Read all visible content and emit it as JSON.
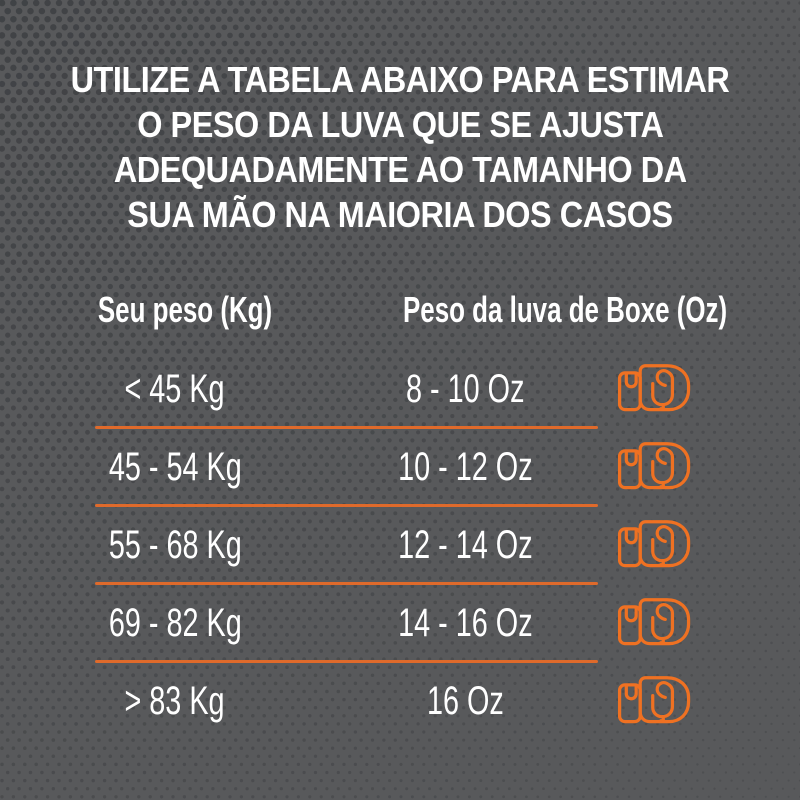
{
  "theme": {
    "background": "#58595b",
    "dot_color": "#3e4043",
    "accent_orange": "#ef7122",
    "divider_orange": "#df6a2b",
    "text_color": "#ffffff"
  },
  "icons": {
    "row_icon": "boxing-glove-icon"
  },
  "chart_data": {
    "type": "table",
    "title_lines": [
      "UTILIZE A TABELA ABAIXO PARA ESTIMAR",
      "O PESO DA LUVA QUE SE AJUSTA",
      "ADEQUADAMENTE AO TAMANHO DA",
      "SUA MÃO NA MAIORIA DOS CASOS"
    ],
    "title": "UTILIZE A TABELA ABAIXO PARA ESTIMAR O PESO DA LUVA QUE SE AJUSTA ADEQUADAMENTE AO TAMANHO DA SUA MÃO NA MAIORIA DOS CASOS",
    "columns": [
      "Seu peso (Kg)",
      "Peso da luva de Boxe (Oz)"
    ],
    "rows": [
      {
        "peso": "< 45 Kg",
        "luva": "8 - 10 Oz"
      },
      {
        "peso": "45 - 54 Kg",
        "luva": "10 - 12 Oz"
      },
      {
        "peso": "55 - 68 Kg",
        "luva": "12 - 14 Oz"
      },
      {
        "peso": "69 - 82 Kg",
        "luva": "14 - 16 Oz"
      },
      {
        "peso": "> 83 Kg",
        "luva": "16 Oz"
      }
    ],
    "legend_position": "none",
    "grid": "horizontal-orange-dividers"
  }
}
